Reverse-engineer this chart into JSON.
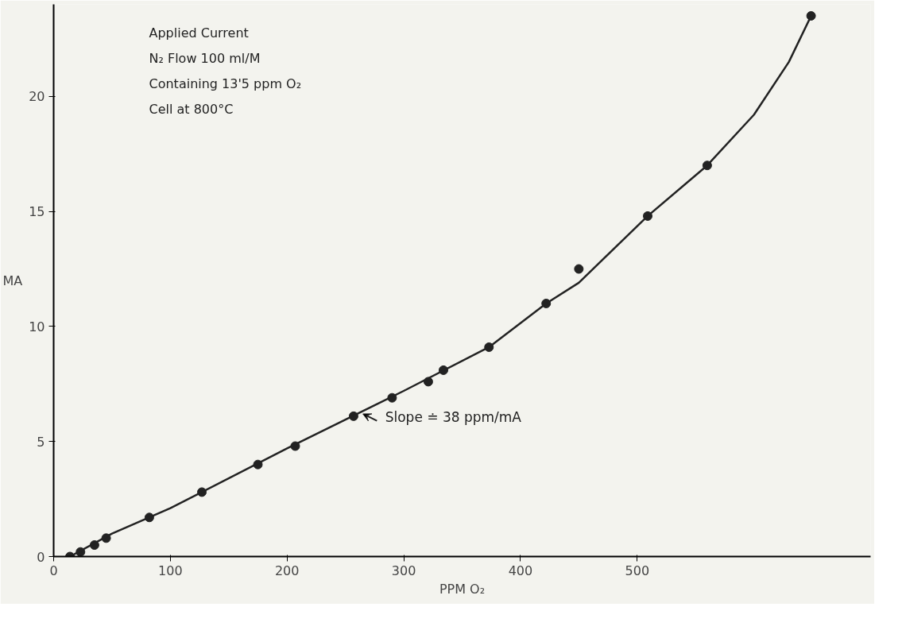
{
  "chart_data": {
    "type": "scatter",
    "xlabel": "PPM O₂",
    "ylabel": "MA",
    "xlim": [
      0,
      700
    ],
    "ylim": [
      0,
      24
    ],
    "xticks": [
      0,
      100,
      200,
      300,
      400,
      500
    ],
    "yticks": [
      0,
      5,
      10,
      15,
      20
    ],
    "grid": false,
    "marker": "circle",
    "series": [
      {
        "color": "#222222",
        "x": [
          14,
          23,
          35,
          45,
          82,
          127,
          175,
          207,
          257,
          290,
          321,
          334,
          373,
          422,
          450,
          509,
          560,
          649
        ],
        "values": [
          0,
          0.2,
          0.5,
          0.8,
          1.7,
          2.8,
          4.0,
          4.8,
          6.1,
          6.9,
          7.6,
          8.1,
          9.1,
          11.0,
          12.5,
          14.8,
          17.0,
          23.5
        ]
      },
      {
        "type": "line",
        "color": "#222222",
        "marker": "none",
        "line_style": "solid",
        "x": [
          14,
          50,
          100,
          200,
          300,
          373,
          422,
          450,
          509,
          560,
          600,
          630,
          649
        ],
        "values": [
          0,
          1.0,
          2.1,
          4.7,
          7.2,
          9.1,
          11.0,
          11.9,
          14.8,
          17.0,
          19.2,
          21.5,
          23.5
        ]
      }
    ],
    "annotations": [
      "Applied Current",
      "N₂ Flow 100 ml/M",
      "Containing 13'5 ppm O₂",
      "Cell at 800°C",
      {
        "text": "Slope ≐ 38 ppm/mA",
        "x": 265,
        "y": 6.2
      }
    ]
  }
}
